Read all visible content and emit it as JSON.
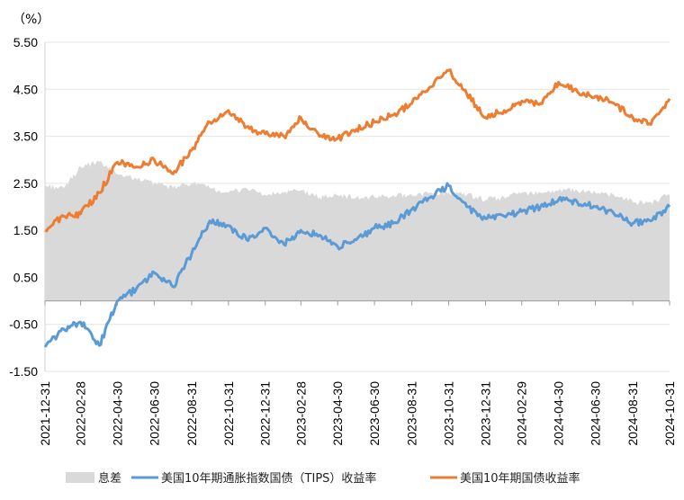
{
  "chart_data": {
    "type": "line",
    "title": "",
    "unit_label": "（%）",
    "xlabel": "",
    "ylabel": "",
    "ylim": [
      -1.5,
      5.5
    ],
    "yticks": [
      "5.50",
      "4.50",
      "3.50",
      "2.50",
      "1.50",
      "0.50",
      "-0.50",
      "-1.50"
    ],
    "ytick_values": [
      5.5,
      4.5,
      3.5,
      2.5,
      1.5,
      0.5,
      -0.5,
      -1.5
    ],
    "grid": true,
    "legend_position": "bottom",
    "x_tick_labels": [
      "2021-12-31",
      "2022-02-28",
      "2022-04-30",
      "2022-06-30",
      "2022-08-31",
      "2022-10-31",
      "2022-12-31",
      "2023-02-28",
      "2023-04-30",
      "2023-06-30",
      "2023-08-31",
      "2023-10-31",
      "2023-12-31",
      "2024-02-29",
      "2024-04-30",
      "2024-06-30",
      "2024-08-31",
      "2024-10-31"
    ],
    "x": [
      "2021-12-31",
      "2022-01-31",
      "2022-02-28",
      "2022-03-31",
      "2022-04-30",
      "2022-05-31",
      "2022-06-30",
      "2022-07-31",
      "2022-08-31",
      "2022-09-30",
      "2022-10-31",
      "2022-11-30",
      "2022-12-31",
      "2023-01-31",
      "2023-02-28",
      "2023-03-31",
      "2023-04-30",
      "2023-05-31",
      "2023-06-30",
      "2023-07-31",
      "2023-08-31",
      "2023-09-30",
      "2023-10-31",
      "2023-11-30",
      "2023-12-31",
      "2024-01-31",
      "2024-02-29",
      "2024-03-31",
      "2024-04-30",
      "2024-05-31",
      "2024-06-30",
      "2024-07-31",
      "2024-08-31",
      "2024-09-30",
      "2024-10-31"
    ],
    "series": [
      {
        "name": "息差",
        "type": "area",
        "color": "#d9d9d9",
        "values": [
          2.45,
          2.4,
          2.85,
          2.95,
          2.7,
          2.6,
          2.5,
          2.4,
          2.5,
          2.4,
          2.3,
          2.4,
          2.25,
          2.3,
          2.35,
          2.2,
          2.25,
          2.2,
          2.2,
          2.25,
          2.25,
          2.3,
          2.3,
          2.25,
          2.15,
          2.2,
          2.3,
          2.3,
          2.35,
          2.35,
          2.3,
          2.25,
          2.1,
          2.1,
          2.25
        ]
      },
      {
        "name": "美国10年期通胀指数国债（TIPS）收益率",
        "type": "line",
        "color": "#5b9bd5",
        "values": [
          -0.98,
          -0.6,
          -0.45,
          -0.95,
          0.0,
          0.25,
          0.6,
          0.3,
          1.0,
          1.7,
          1.6,
          1.3,
          1.55,
          1.2,
          1.5,
          1.4,
          1.15,
          1.3,
          1.55,
          1.65,
          1.95,
          2.2,
          2.45,
          2.0,
          1.75,
          1.8,
          1.9,
          2.0,
          2.15,
          2.1,
          2.0,
          1.85,
          1.65,
          1.7,
          2.0
        ]
      },
      {
        "name": "美国10年期国债收益率",
        "type": "line",
        "color": "#ed7d31",
        "values": [
          1.5,
          1.8,
          1.85,
          2.3,
          2.95,
          2.85,
          3.0,
          2.7,
          3.2,
          3.8,
          4.05,
          3.7,
          3.55,
          3.5,
          3.9,
          3.5,
          3.45,
          3.65,
          3.8,
          3.95,
          4.2,
          4.55,
          4.9,
          4.4,
          3.9,
          4.05,
          4.25,
          4.2,
          4.65,
          4.45,
          4.35,
          4.2,
          3.9,
          3.75,
          4.3
        ]
      }
    ]
  }
}
